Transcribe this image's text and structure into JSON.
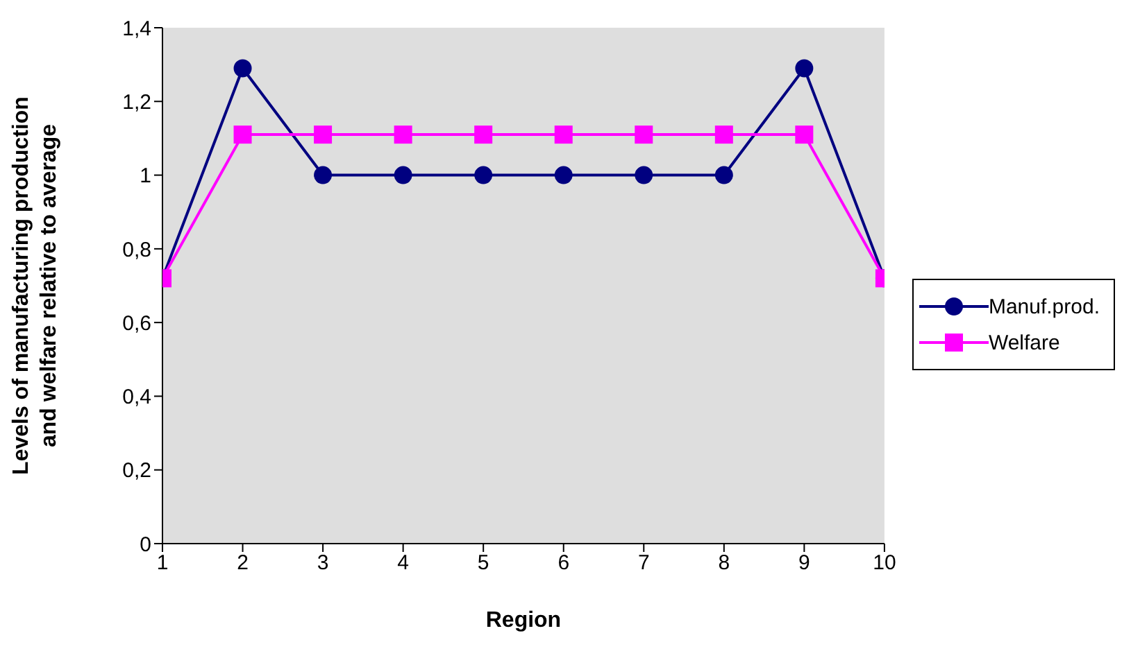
{
  "chart_data": {
    "type": "line",
    "xlabel": "Region",
    "ylabel": "Levels of manufacturing production and welfare relative to average",
    "x": [
      1,
      2,
      3,
      4,
      5,
      6,
      7,
      8,
      9,
      10
    ],
    "xlim": [
      1,
      10
    ],
    "xticks": [
      1,
      2,
      3,
      4,
      5,
      6,
      7,
      8,
      9,
      10
    ],
    "ylim": [
      0,
      1.4
    ],
    "yticks": [
      0,
      {
        "value": 0.2,
        "label": "0,2"
      },
      {
        "value": 0.4,
        "label": "0,4"
      },
      {
        "value": 0.6,
        "label": "0,6"
      },
      {
        "value": 0.8,
        "label": "0,8"
      },
      1,
      {
        "value": 1.2,
        "label": "1,2"
      },
      {
        "value": 1.4,
        "label": "1,4"
      }
    ],
    "grid": false,
    "legend": "right",
    "line_style": "solid",
    "series": [
      {
        "name": "Manuf.prod.",
        "color": "#000080",
        "marker": "circle",
        "values": [
          0.72,
          1.29,
          1,
          1,
          1,
          1,
          1,
          1,
          1.29,
          0.72
        ]
      },
      {
        "name": "Welfare",
        "color": "#ff00ff",
        "marker": "square",
        "values": [
          0.72,
          1.11,
          1.11,
          1.11,
          1.11,
          1.11,
          1.11,
          1.11,
          1.11,
          0.72
        ]
      }
    ]
  }
}
